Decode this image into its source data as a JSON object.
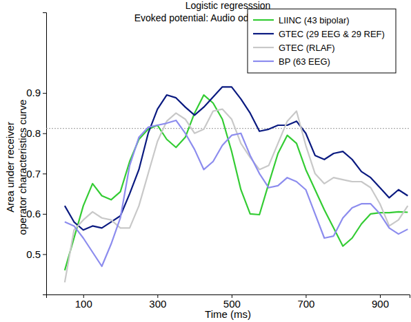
{
  "chart_data": {
    "type": "line",
    "title": "Logistic regresssion",
    "subtitle": "Evoked potential: Audio oddball vs standard",
    "x_label": "Time (ms)",
    "y_label": [
      "Area under receiver",
      "operator characteristics curve"
    ],
    "x": [
      50,
      75,
      100,
      125,
      150,
      175,
      200,
      225,
      250,
      275,
      300,
      325,
      350,
      375,
      400,
      425,
      450,
      475,
      500,
      525,
      550,
      575,
      600,
      625,
      650,
      675,
      700,
      725,
      750,
      775,
      800,
      825,
      850,
      875,
      900,
      925,
      950,
      975
    ],
    "series": [
      {
        "name": "LIINC (43 bipolar)",
        "color": "#33cc33",
        "values": [
          0.46,
          0.54,
          0.62,
          0.675,
          0.645,
          0.635,
          0.655,
          0.73,
          0.785,
          0.81,
          0.82,
          0.785,
          0.765,
          0.79,
          0.85,
          0.895,
          0.875,
          0.835,
          0.755,
          0.66,
          0.6,
          0.598,
          0.675,
          0.75,
          0.795,
          0.775,
          0.71,
          0.66,
          0.61,
          0.565,
          0.52,
          0.54,
          0.575,
          0.6,
          0.603,
          0.603,
          0.605,
          0.604
        ]
      },
      {
        "name": "GTEC (29 EEG & 29 REF)",
        "color": "#0a1a80",
        "values": [
          0.62,
          0.58,
          0.56,
          0.57,
          0.565,
          0.58,
          0.595,
          0.65,
          0.71,
          0.8,
          0.86,
          0.895,
          0.888,
          0.865,
          0.845,
          0.865,
          0.89,
          0.915,
          0.915,
          0.885,
          0.85,
          0.805,
          0.81,
          0.82,
          0.82,
          0.83,
          0.8,
          0.745,
          0.735,
          0.75,
          0.755,
          0.735,
          0.705,
          0.69,
          0.665,
          0.64,
          0.66,
          0.645
        ]
      },
      {
        "name": "GTEC (RLAF)",
        "color": "#c8c8c8",
        "values": [
          0.43,
          0.56,
          0.585,
          0.605,
          0.59,
          0.585,
          0.565,
          0.565,
          0.62,
          0.7,
          0.78,
          0.83,
          0.85,
          0.835,
          0.8,
          0.81,
          0.855,
          0.86,
          0.835,
          0.775,
          0.74,
          0.71,
          0.72,
          0.775,
          0.83,
          0.855,
          0.77,
          0.7,
          0.675,
          0.69,
          0.685,
          0.68,
          0.68,
          0.665,
          0.625,
          0.57,
          0.585,
          0.62
        ]
      },
      {
        "name": "BP (63 EEG)",
        "color": "#8c8cee",
        "values": [
          0.58,
          0.57,
          0.54,
          0.505,
          0.47,
          0.525,
          0.59,
          0.72,
          0.79,
          0.815,
          0.82,
          0.825,
          0.832,
          0.8,
          0.76,
          0.71,
          0.73,
          0.77,
          0.795,
          0.8,
          0.745,
          0.7,
          0.665,
          0.67,
          0.69,
          0.68,
          0.66,
          0.6,
          0.54,
          0.545,
          0.59,
          0.615,
          0.625,
          0.625,
          0.6,
          0.565,
          0.55,
          0.562
        ]
      }
    ],
    "threshold": 0.812,
    "xlim": [
      0,
      980
    ],
    "xticks": [
      100,
      300,
      500,
      700,
      900
    ],
    "ylim": [
      0.4,
      1.1
    ],
    "yticks": [
      0.5,
      0.6,
      0.7,
      0.8,
      0.9
    ],
    "legend": "upper right",
    "grid": false
  }
}
